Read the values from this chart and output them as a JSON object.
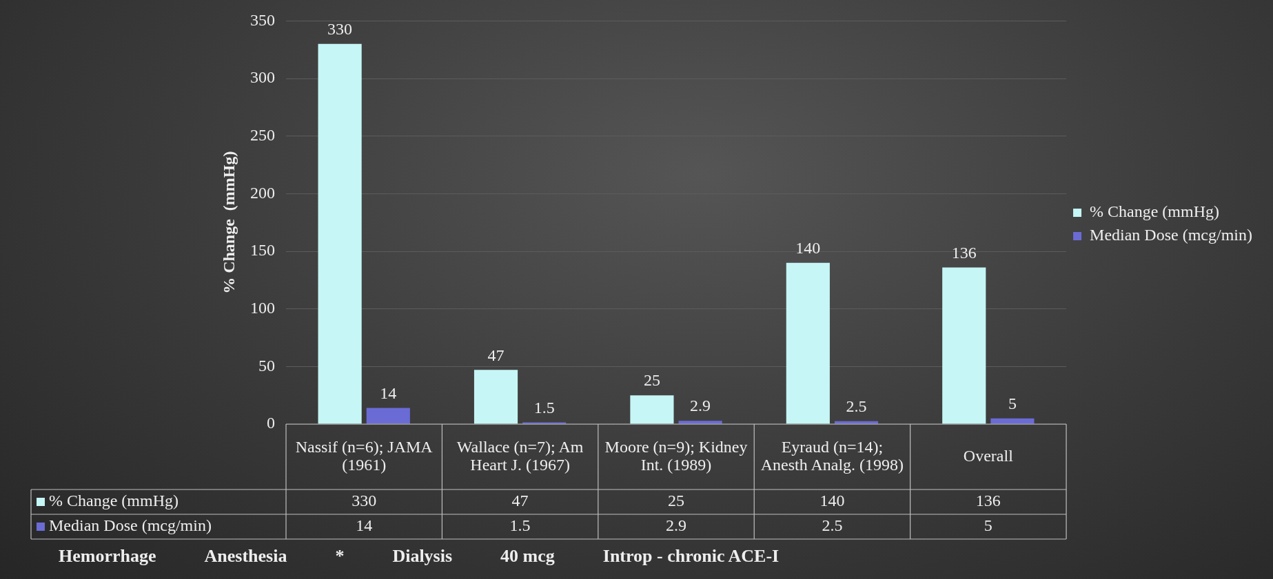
{
  "chart_data": {
    "type": "bar",
    "ylabel": "% Change  (mmHg)",
    "categories": [
      "Nassif (n=6); JAMA (1961)",
      "Wallace (n=7); Am Heart J. (1967)",
      "Moore (n=9); Kidney Int. (1989)",
      "Eyraud (n=14); Anesth Analg. (1998)",
      "Overall"
    ],
    "series": [
      {
        "name": "% Change (mmHg)",
        "color": "#c6f6f6",
        "values": [
          330,
          47,
          25,
          140,
          136
        ],
        "value_labels": [
          "330",
          "47",
          "25",
          "140",
          "136"
        ]
      },
      {
        "name": "Median Dose (mcg/min)",
        "color": "#6b6bd6",
        "values": [
          14,
          1.5,
          2.9,
          2.5,
          5
        ],
        "value_labels": [
          "14",
          "1.5",
          "2.9",
          "2.5",
          "5"
        ]
      }
    ],
    "ylim": [
      0,
      350
    ],
    "yticks": [
      0,
      50,
      100,
      150,
      200,
      250,
      300,
      350
    ],
    "grid": "y",
    "legend": "right",
    "annotations": [
      "Hemorrhage",
      "Anesthesia",
      "*",
      "Dialysis",
      "40 mcg",
      "Introp - chronic ACE-I",
      {
        "text": "330",
        "x": "Nassif (n=6); JAMA (1961)",
        "y": 330
      },
      {
        "text": "47",
        "x": "Wallace (n=7); Am Heart J. (1967)",
        "y": 47
      },
      {
        "text": "25",
        "x": "Moore (n=9); Kidney Int. (1989)",
        "y": 25
      },
      {
        "text": "140",
        "x": "Eyraud (n=14); Anesth Analg. (1998)",
        "y": 140
      },
      {
        "text": "136",
        "x": "Overall",
        "y": 136
      },
      {
        "text": "14",
        "x": "Nassif (n=6); JAMA (1961)",
        "y": 14
      },
      {
        "text": "1.5",
        "x": "Wallace (n=7); Am Heart J. (1967)",
        "y": 1.5
      },
      {
        "text": "2.9",
        "x": "Moore (n=9); Kidney Int. (1989)",
        "y": 2.9
      },
      {
        "text": "2.5",
        "x": "Eyraud (n=14); Anesth Analg. (1998)",
        "y": 2.5
      },
      {
        "text": "5",
        "x": "Overall",
        "y": 5
      }
    ]
  }
}
